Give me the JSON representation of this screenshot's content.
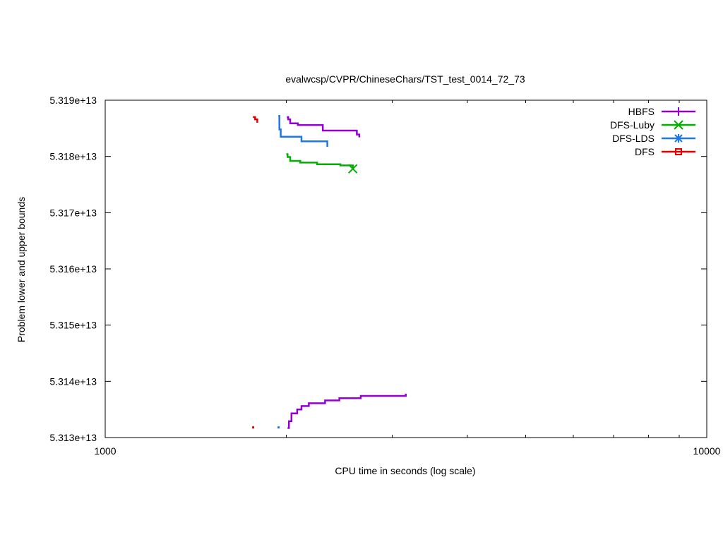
{
  "chart_data": {
    "type": "line",
    "title": "evalwcsp/CVPR/ChineseChars/TST_test_0014_72_73",
    "xlabel": "CPU time in seconds (log scale)",
    "ylabel": "Problem lower and upper bounds",
    "x_scale": "log",
    "xlim": [
      1000,
      10000
    ],
    "ylim": [
      53130000000000,
      53190000000000
    ],
    "x_ticks": [
      1000,
      10000
    ],
    "x_tick_labels": [
      "1000",
      "10000"
    ],
    "y_ticks": [
      53130000000000,
      53140000000000,
      53150000000000,
      53160000000000,
      53170000000000,
      53180000000000,
      53190000000000
    ],
    "y_tick_labels": [
      "5.313e+13",
      "5.314e+13",
      "5.315e+13",
      "5.316e+13",
      "5.317e+13",
      "5.318e+13",
      "5.319e+13"
    ],
    "grid": false,
    "legend_position": "top-right",
    "series": [
      {
        "name": "HBFS",
        "color": "#9400d3",
        "marker": "plus",
        "upper": [
          [
            2005,
            53187000000000
          ],
          [
            2015,
            53186600000000
          ],
          [
            2030,
            53185900000000
          ],
          [
            2090,
            53185600000000
          ],
          [
            2300,
            53184600000000
          ],
          [
            2620,
            53183900000000
          ],
          [
            2645,
            53183400000000
          ]
        ],
        "lower": [
          [
            2010,
            53131700000000
          ],
          [
            2020,
            53132900000000
          ],
          [
            2040,
            53134300000000
          ],
          [
            2085,
            53135000000000
          ],
          [
            2120,
            53135600000000
          ],
          [
            2180,
            53136100000000
          ],
          [
            2320,
            53136600000000
          ],
          [
            2450,
            53137000000000
          ],
          [
            2660,
            53137400000000
          ],
          [
            3160,
            53137800000000
          ]
        ]
      },
      {
        "name": "DFS-Luby",
        "color": "#00b000",
        "marker": "x",
        "upper": [
          [
            2000,
            53180400000000
          ],
          [
            2010,
            53179900000000
          ],
          [
            2030,
            53179200000000
          ],
          [
            2110,
            53178900000000
          ],
          [
            2250,
            53178600000000
          ],
          [
            2460,
            53178400000000
          ],
          [
            2580,
            53177800000000
          ]
        ],
        "lower": []
      },
      {
        "name": "DFS-LDS",
        "color": "#1e77e6",
        "marker": "star",
        "upper": [
          [
            1940,
            53187200000000
          ],
          [
            1948,
            53184800000000
          ],
          [
            1958,
            53183500000000
          ],
          [
            2120,
            53182700000000
          ],
          [
            2340,
            53181700000000
          ]
        ],
        "lower": [
          [
            1942,
            53131800000000
          ]
        ]
      },
      {
        "name": "DFS",
        "color": "#e00000",
        "marker": "square",
        "upper": [
          [
            1760,
            53187000000000
          ],
          [
            1775,
            53186600000000
          ],
          [
            1790,
            53186000000000
          ]
        ],
        "lower": [
          [
            1762,
            53131800000000
          ]
        ]
      }
    ]
  }
}
